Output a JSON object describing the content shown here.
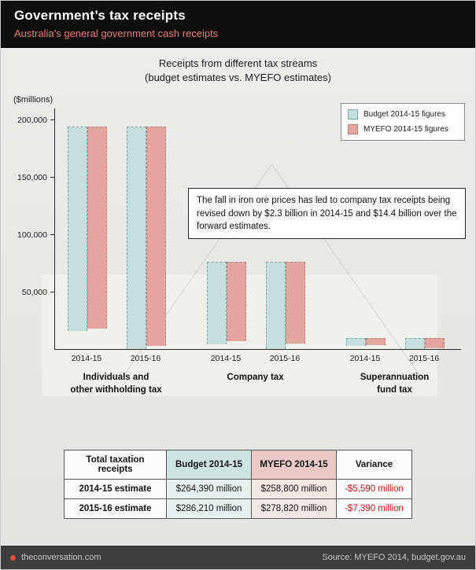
{
  "header": {
    "title": "Government’s tax receipts",
    "subtitle": "Australia’s general government cash receipts",
    "subtitle_color": "#e57f78"
  },
  "chart": {
    "title_line1": "Receipts from different tax streams",
    "title_line2": "(budget estimates vs. MYEFO estimates)",
    "y_axis_label": "($millions)",
    "legend": [
      {
        "label": "Budget 2014-15 figures",
        "fill": "#c5e0dc",
        "border": "#7aaaa3"
      },
      {
        "label": "MYEFO 2014-15 figures",
        "fill": "#e2a69f",
        "border": "#ba7f77"
      }
    ],
    "annotation": "The fall in iron ore prices has led to company tax receipts being revised down by $2.3 billion in 2014-15 and $14.4 billion over the forward estimates.",
    "colors": {
      "budget_fill": "#c5e0dc",
      "budget_border": "#7aaaa3",
      "myefo_fill": "#e2a69f",
      "myefo_border": "#ba7f77"
    }
  },
  "chart_data": {
    "type": "bar",
    "title": "Receipts from different tax streams (budget estimates vs. MYEFO estimates)",
    "xlabel": "",
    "ylabel": "($millions)",
    "ylim": [
      0,
      200000
    ],
    "yticks": [
      {
        "value": 50000,
        "label": "50,000"
      },
      {
        "value": 100000,
        "label": "100,000"
      },
      {
        "value": 150000,
        "label": "150,000"
      },
      {
        "value": 200000,
        "label": "200,000"
      }
    ],
    "series": [
      "Budget 2014-15 figures",
      "MYEFO 2014-15 figures"
    ],
    "legend_position": "top-right",
    "grid": false,
    "groups": [
      {
        "label": "Individuals and other withholding tax",
        "label_lines": [
          "Individuals and",
          "other withholding tax"
        ],
        "pairs": [
          {
            "x_label": "2014-15",
            "budget": 178000,
            "myefo": 176000
          },
          {
            "x_label": "2015-16",
            "budget": 194000,
            "myefo": 191000
          }
        ]
      },
      {
        "label": "Company tax",
        "label_lines": [
          "Company tax"
        ],
        "pairs": [
          {
            "x_label": "2014-15",
            "budget": 71600,
            "myefo": 69300
          },
          {
            "x_label": "2015-16",
            "budget": 76000,
            "myefo": 71200
          }
        ]
      },
      {
        "label": "Superannuation fund tax",
        "label_lines": [
          "Superannuation",
          "fund tax"
        ],
        "pairs": [
          {
            "x_label": "2014-15",
            "budget": 7000,
            "myefo": 6400
          },
          {
            "x_label": "2015-16",
            "budget": 9600,
            "myefo": 8900
          }
        ]
      }
    ]
  },
  "table": {
    "headers": [
      "Total taxation receipts",
      "Budget 2014-15",
      "MYEFO 2014-15",
      "Variance"
    ],
    "rows": [
      {
        "label": "2014-15 estimate",
        "budget": "$264,390 million",
        "myefo": "$258,800 million",
        "variance": "-$5,590 million"
      },
      {
        "label": "2015-16 estimate",
        "budget": "$286,210 million",
        "myefo": "$278,820 million",
        "variance": "-$7,390 million"
      }
    ],
    "variance_color": "#cc1414"
  },
  "footer": {
    "site": "theconversation.com",
    "source": "Source: MYEFO 2014, budget.gov.au"
  }
}
